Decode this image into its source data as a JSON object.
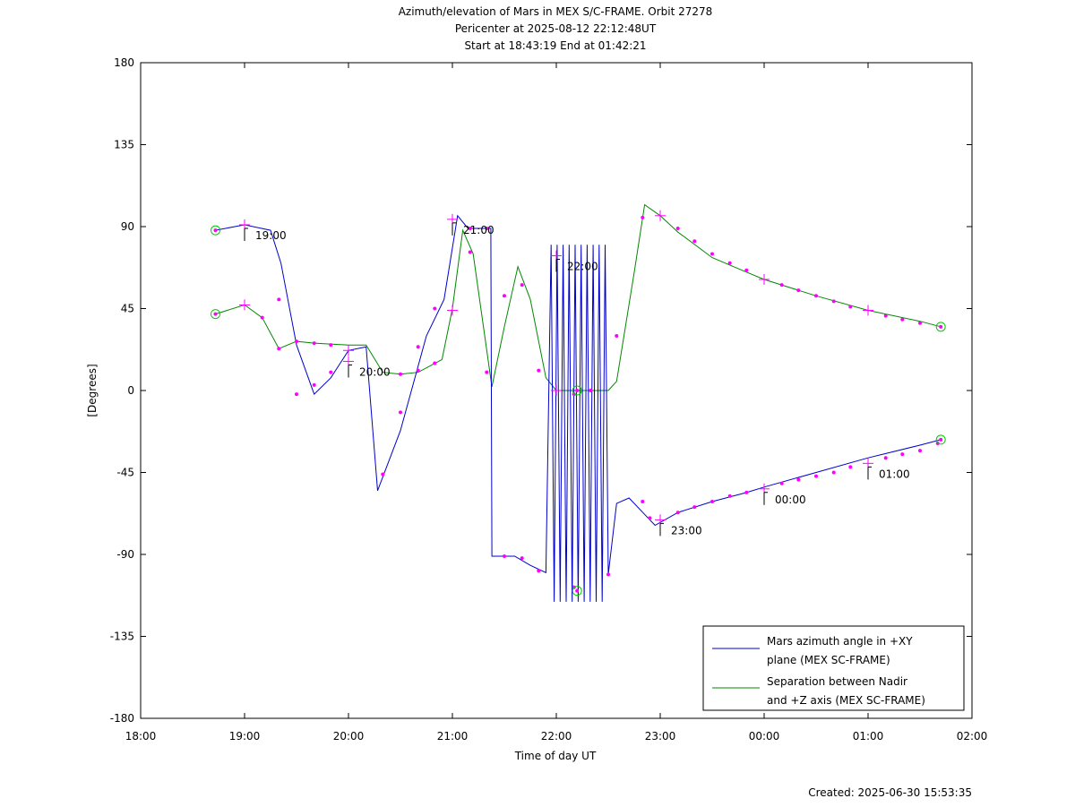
{
  "chart_data": {
    "type": "line",
    "title": [
      "Azimuth/elevation of Mars in MEX S/C-FRAME.  Orbit 27278",
      "Pericenter at 2025-08-12 22:12:48UT",
      "Start at 18:43:19 End at 01:42:21"
    ],
    "xlabel": "Time of day UT",
    "ylabel": "[Degrees]",
    "xlim": [
      18.0,
      26.0
    ],
    "ylim": [
      -180,
      180
    ],
    "x_ticks": [
      "18:00",
      "19:00",
      "20:00",
      "21:00",
      "22:00",
      "23:00",
      "00:00",
      "01:00",
      "02:00"
    ],
    "y_ticks": [
      180,
      135,
      90,
      45,
      0,
      -45,
      -90,
      -135,
      -180
    ],
    "grid": false,
    "legend_position": "bottom-right",
    "series": [
      {
        "name": "Mars azimuth angle in +XY plane (MEX SC-FRAME)",
        "color": "#0000cc",
        "points": [
          [
            18.72,
            88
          ],
          [
            19.0,
            91
          ],
          [
            19.25,
            88
          ],
          [
            19.35,
            70
          ],
          [
            19.5,
            25
          ],
          [
            19.67,
            -2
          ],
          [
            19.83,
            7
          ],
          [
            20.0,
            22
          ],
          [
            20.17,
            24
          ],
          [
            20.28,
            -55
          ],
          [
            20.5,
            -22
          ],
          [
            20.75,
            30
          ],
          [
            20.92,
            50
          ],
          [
            21.05,
            96
          ],
          [
            21.15,
            89
          ],
          [
            21.37,
            89
          ],
          [
            21.38,
            -91
          ],
          [
            21.6,
            -91
          ],
          [
            21.75,
            -96
          ],
          [
            21.9,
            -100
          ],
          [
            22.0,
            -105
          ],
          [
            22.25,
            -109
          ],
          [
            22.5,
            -101
          ],
          [
            22.58,
            -62
          ],
          [
            22.7,
            -59
          ],
          [
            22.85,
            -68
          ],
          [
            22.95,
            -74
          ],
          [
            23.17,
            -67
          ],
          [
            23.5,
            -61
          ],
          [
            23.83,
            -56
          ],
          [
            24.0,
            -53
          ],
          [
            24.5,
            -45
          ],
          [
            25.0,
            -37
          ],
          [
            25.5,
            -30
          ],
          [
            25.7,
            -27
          ]
        ],
        "dense_oscillation": {
          "x_start": 21.95,
          "x_end": 22.47,
          "y_top": 80,
          "y_bottom": -116,
          "cycles": 9
        }
      },
      {
        "name": "Separation between Nadir and +Z axis (MEX SC-FRAME)",
        "color": "#008800",
        "points": [
          [
            18.72,
            42
          ],
          [
            19.0,
            47
          ],
          [
            19.17,
            40
          ],
          [
            19.33,
            23
          ],
          [
            19.5,
            27
          ],
          [
            19.67,
            26
          ],
          [
            20.0,
            25
          ],
          [
            20.17,
            25
          ],
          [
            20.33,
            10
          ],
          [
            20.5,
            9
          ],
          [
            20.67,
            10
          ],
          [
            20.9,
            17
          ],
          [
            21.0,
            45
          ],
          [
            21.1,
            88
          ],
          [
            21.2,
            75
          ],
          [
            21.38,
            2
          ],
          [
            21.5,
            35
          ],
          [
            21.63,
            68
          ],
          [
            21.75,
            50
          ],
          [
            21.9,
            7
          ],
          [
            22.0,
            0
          ],
          [
            22.5,
            0
          ],
          [
            22.58,
            5
          ],
          [
            22.75,
            65
          ],
          [
            22.85,
            102
          ],
          [
            23.0,
            96
          ],
          [
            23.17,
            87
          ],
          [
            23.5,
            73
          ],
          [
            23.83,
            65
          ],
          [
            24.0,
            61
          ],
          [
            24.5,
            52
          ],
          [
            25.0,
            44
          ],
          [
            25.5,
            38
          ],
          [
            25.7,
            35
          ]
        ]
      }
    ],
    "markers": {
      "circles": [
        [
          18.72,
          88
        ],
        [
          18.72,
          42
        ],
        [
          22.2,
          -110
        ],
        [
          22.2,
          0
        ],
        [
          25.7,
          -27
        ],
        [
          25.7,
          35
        ]
      ],
      "crosses": [
        [
          19.0,
          91
        ],
        [
          19.0,
          47
        ],
        [
          20.0,
          22
        ],
        [
          20.0,
          16
        ],
        [
          21.0,
          94
        ],
        [
          21.0,
          44
        ],
        [
          22.0,
          74
        ],
        [
          22.0,
          0
        ],
        [
          23.0,
          96
        ],
        [
          23.0,
          -71
        ],
        [
          24.0,
          61
        ],
        [
          24.0,
          -54
        ],
        [
          25.0,
          44
        ],
        [
          25.0,
          -40
        ]
      ],
      "dots": [
        [
          19.17,
          40
        ],
        [
          19.33,
          23
        ],
        [
          19.5,
          27
        ],
        [
          19.67,
          26
        ],
        [
          19.83,
          25
        ],
        [
          20.5,
          9
        ],
        [
          20.67,
          11
        ],
        [
          20.83,
          15
        ],
        [
          21.17,
          89
        ],
        [
          21.33,
          89
        ],
        [
          21.33,
          10
        ],
        [
          21.5,
          52
        ],
        [
          21.67,
          58
        ],
        [
          21.83,
          11
        ],
        [
          22.17,
          -2
        ],
        [
          22.33,
          0
        ],
        [
          22.58,
          30
        ],
        [
          22.83,
          95
        ],
        [
          23.17,
          89
        ],
        [
          23.33,
          82
        ],
        [
          23.5,
          75
        ],
        [
          23.67,
          70
        ],
        [
          23.83,
          66
        ],
        [
          24.17,
          58
        ],
        [
          24.33,
          55
        ],
        [
          24.5,
          52
        ],
        [
          24.67,
          49
        ],
        [
          24.83,
          46
        ],
        [
          25.17,
          41
        ],
        [
          25.33,
          39
        ],
        [
          25.5,
          37
        ],
        [
          19.33,
          50
        ],
        [
          19.5,
          -2
        ],
        [
          19.67,
          3
        ],
        [
          19.83,
          10
        ],
        [
          20.33,
          -46
        ],
        [
          20.5,
          -12
        ],
        [
          20.67,
          24
        ],
        [
          20.83,
          45
        ],
        [
          21.17,
          76
        ],
        [
          21.5,
          -91
        ],
        [
          21.67,
          -92
        ],
        [
          21.83,
          -99
        ],
        [
          22.17,
          -108
        ],
        [
          22.5,
          -101
        ],
        [
          22.83,
          -61
        ],
        [
          22.9,
          -70
        ],
        [
          23.17,
          -67
        ],
        [
          23.33,
          -64
        ],
        [
          23.5,
          -61
        ],
        [
          23.67,
          -58
        ],
        [
          23.83,
          -56
        ],
        [
          24.17,
          -51
        ],
        [
          24.33,
          -49
        ],
        [
          24.5,
          -47
        ],
        [
          24.67,
          -45
        ],
        [
          24.83,
          -42
        ],
        [
          25.17,
          -37
        ],
        [
          25.33,
          -35
        ],
        [
          25.5,
          -33
        ],
        [
          25.67,
          -29
        ]
      ]
    },
    "time_annotations": [
      {
        "label": "19:00",
        "x": 19.0,
        "y": 91
      },
      {
        "label": "20:00",
        "x": 20.0,
        "y": 16
      },
      {
        "label": "21:00",
        "x": 21.0,
        "y": 94
      },
      {
        "label": "22:00",
        "x": 22.0,
        "y": 74
      },
      {
        "label": "23:00",
        "x": 23.0,
        "y": -71
      },
      {
        "label": "00:00",
        "x": 24.0,
        "y": -54
      },
      {
        "label": "01:00",
        "x": 25.0,
        "y": -40
      }
    ]
  },
  "legend": {
    "items": [
      {
        "line1": "Mars azimuth angle in +XY",
        "line2": "plane (MEX SC-FRAME)",
        "color": "#0000cc"
      },
      {
        "line1": "Separation between Nadir",
        "line2": "and +Z axis (MEX SC-FRAME)",
        "color": "#008800"
      }
    ]
  },
  "marker_color": "#ff00ff",
  "circle_color": "#00cc00",
  "footer": {
    "created": "Created: 2025-06-30 15:53:35"
  }
}
